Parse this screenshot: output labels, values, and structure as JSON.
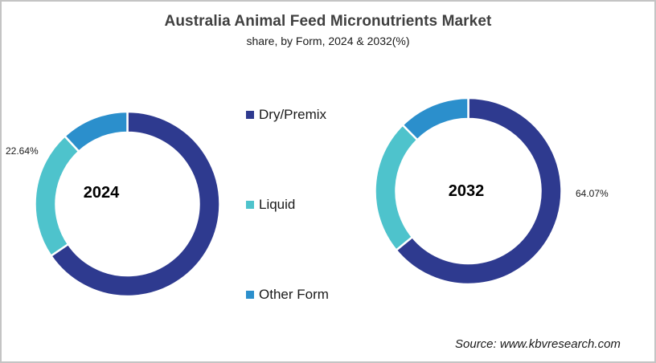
{
  "header": {
    "title": "Australia Animal Feed Micronutrients Market",
    "subtitle": "share, by Form, 2024 & 2032(%)"
  },
  "legend": {
    "items": [
      {
        "label": "Dry/Premix",
        "color": "#2E3A8F"
      },
      {
        "label": "Liquid",
        "color": "#4EC3CC"
      },
      {
        "label": "Other Form",
        "color": "#2B8FCC"
      }
    ]
  },
  "source": "Source: www.kbvresearch.com",
  "chart_data": [
    {
      "type": "pie",
      "variant": "donut",
      "title": "2024",
      "categories": [
        "Dry/Premix",
        "Liquid",
        "Other Form"
      ],
      "values": [
        65.5,
        22.64,
        11.86
      ],
      "colors": [
        "#2E3A8F",
        "#4EC3CC",
        "#2B8FCC"
      ],
      "data_labels": [
        {
          "category": "Liquid",
          "text": "22.64%"
        }
      ],
      "center_label": "2024",
      "start_angle": "12 o'clock, clockwise"
    },
    {
      "type": "pie",
      "variant": "donut",
      "title": "2032",
      "categories": [
        "Dry/Premix",
        "Liquid",
        "Other Form"
      ],
      "values": [
        64.07,
        23.5,
        12.43
      ],
      "colors": [
        "#2E3A8F",
        "#4EC3CC",
        "#2B8FCC"
      ],
      "data_labels": [
        {
          "category": "Dry/Premix",
          "text": "64.07%"
        }
      ],
      "center_label": "2032",
      "start_angle": "12 o'clock, clockwise"
    }
  ],
  "chart_title": "Australia Animal Feed Micronutrients Market",
  "chart_subtitle": "share, by Form, 2024 & 2032(%)",
  "legend_position": "center"
}
